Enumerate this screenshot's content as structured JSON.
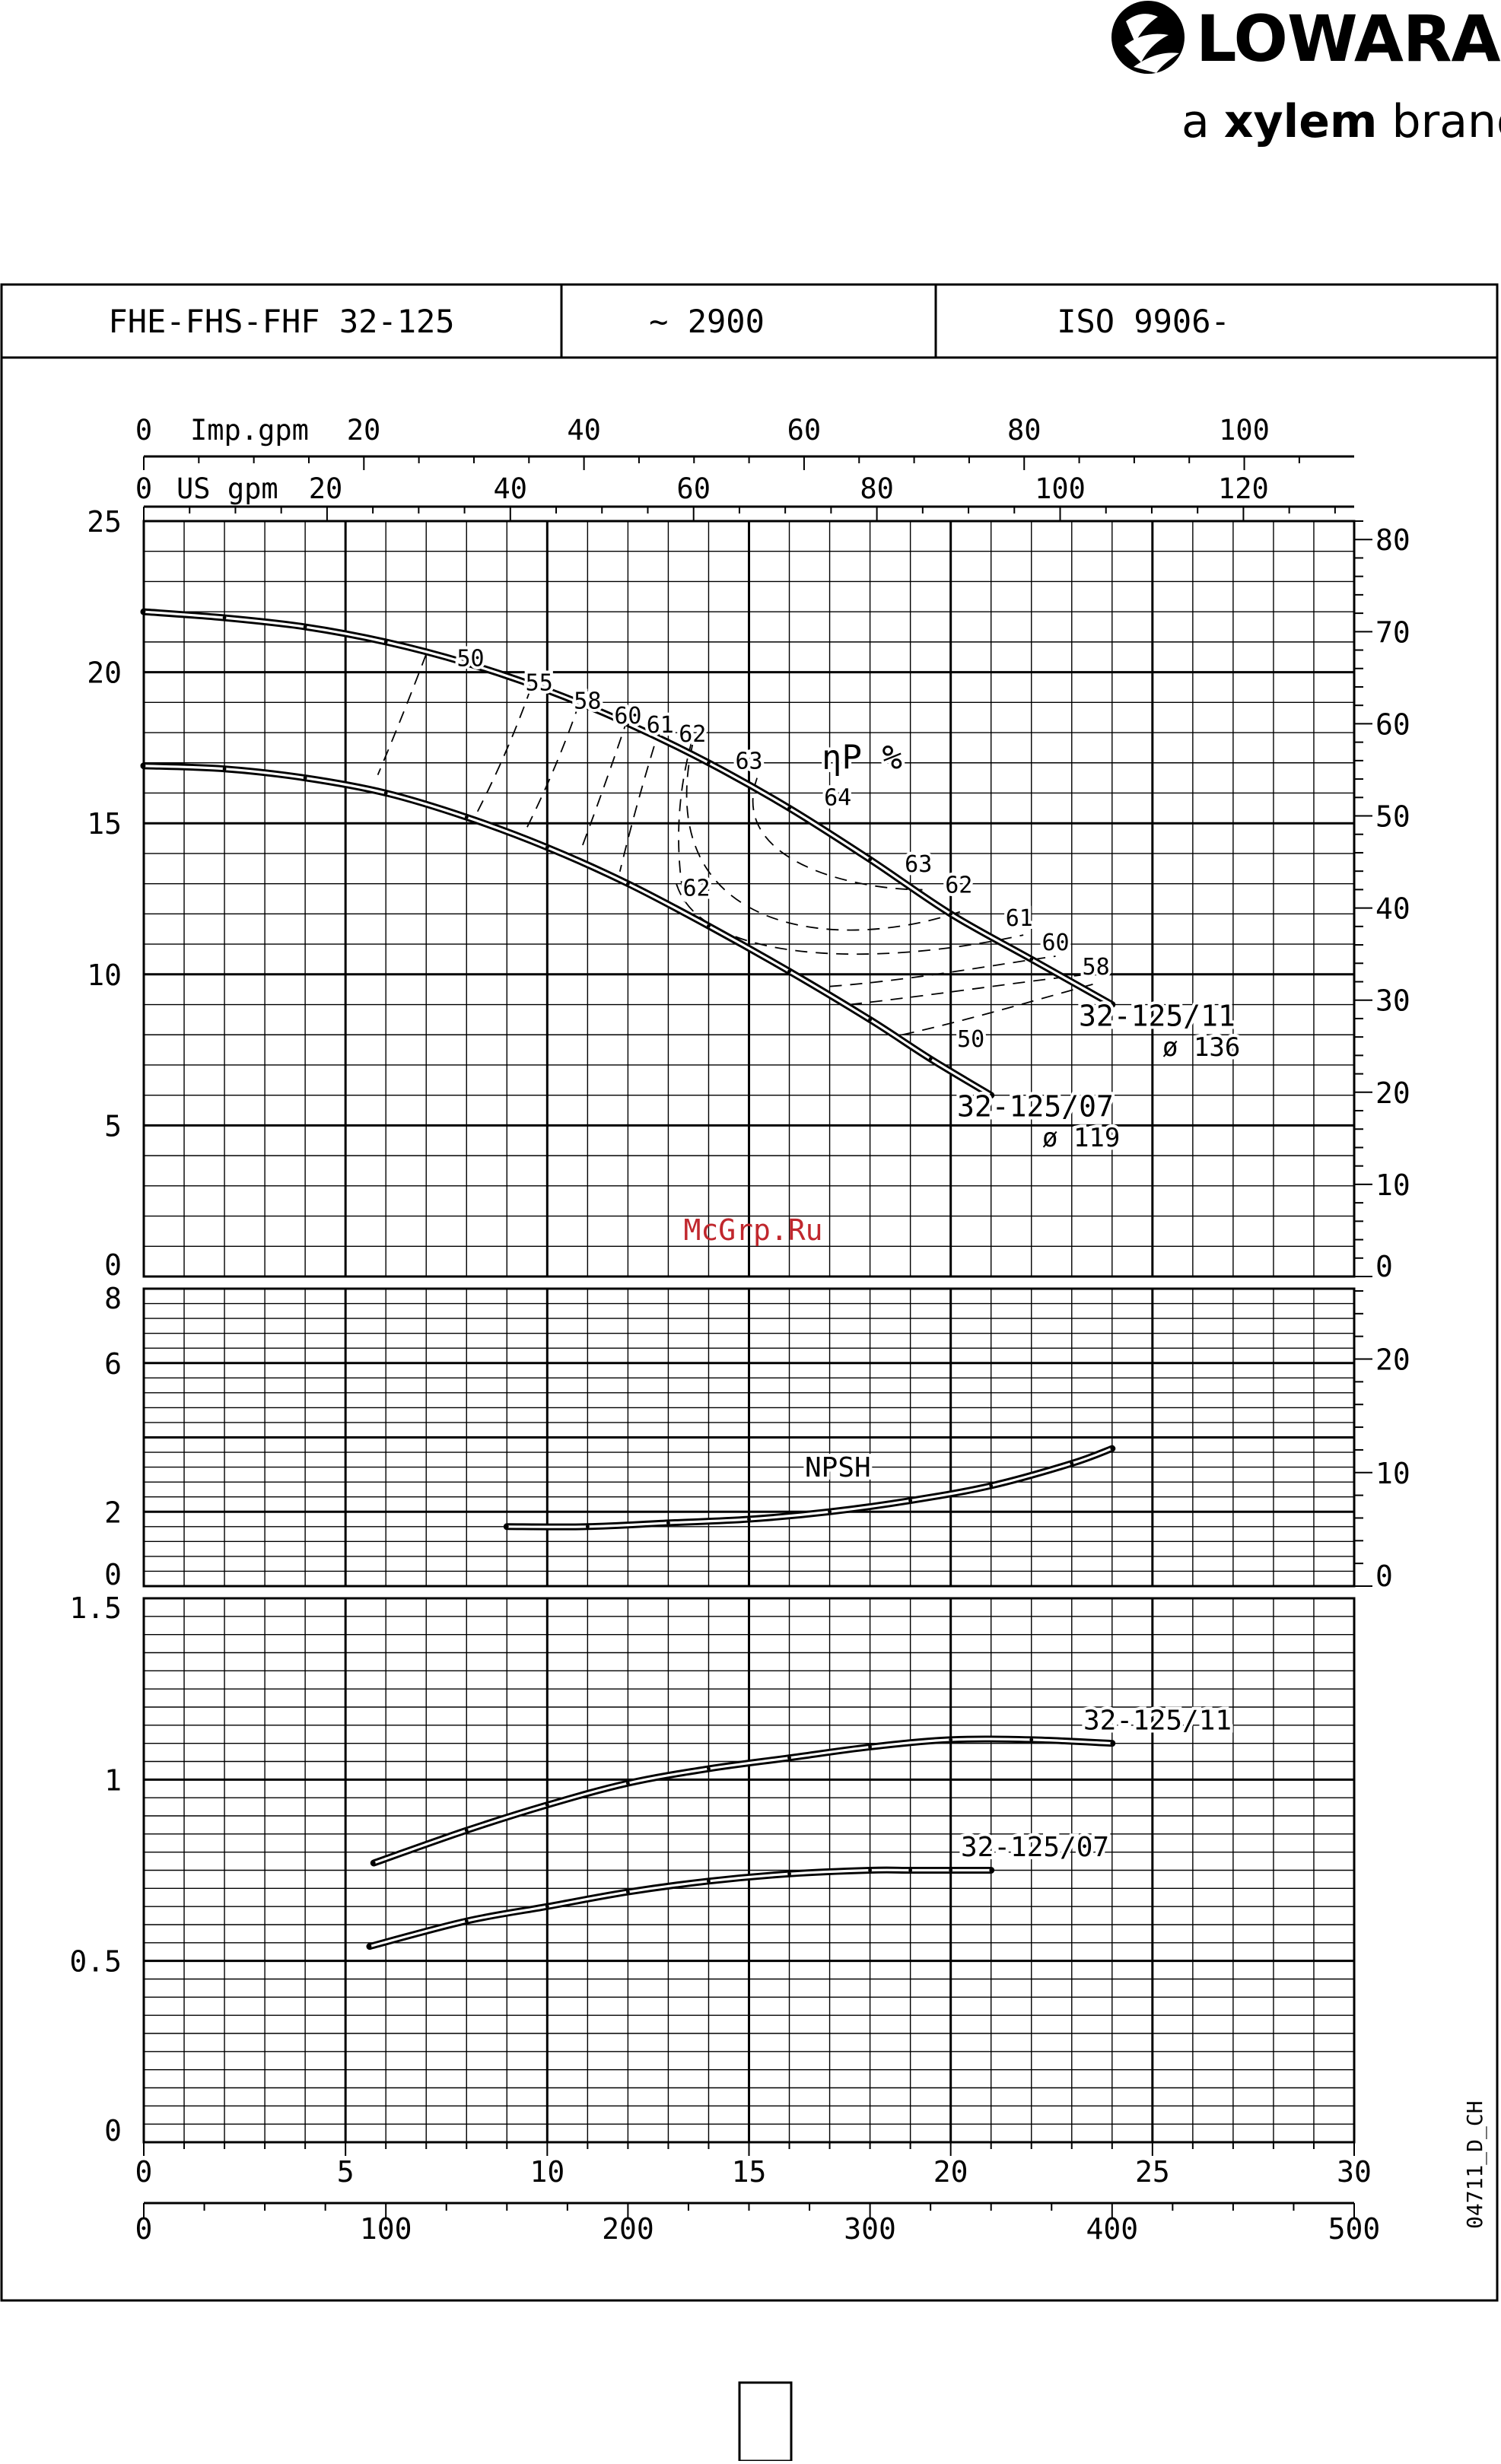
{
  "brand": {
    "name": "LOWARA",
    "tagline_prefix": "a ",
    "tagline_bold": "xylem",
    "tagline_suffix": " brand"
  },
  "header": {
    "model": "FHE-FHS-FHF 32-125",
    "speed": "~ 2900",
    "standard": "ISO 9906-"
  },
  "watermark": "McGrp.Ru",
  "drawing_code": "04711_D_CH",
  "chart_data": [
    {
      "type": "line",
      "panel": "head",
      "flow_axis_m3h": {
        "ticks": [
          0,
          5,
          10,
          15,
          20,
          25,
          30
        ],
        "range": [
          0,
          30
        ]
      },
      "flow_axis_lmin": {
        "ticks": [
          0,
          100,
          200,
          300,
          400,
          500
        ],
        "range": [
          0,
          500
        ]
      },
      "flow_axis_imp_gpm": {
        "ticks": [
          0,
          20,
          40,
          60,
          80,
          100
        ],
        "unit_label": "Imp.gpm"
      },
      "flow_axis_us_gpm": {
        "ticks": [
          0,
          20,
          40,
          60,
          80,
          100,
          120
        ],
        "unit_label": "US gpm"
      },
      "y_left": {
        "ticks": [
          0,
          5,
          10,
          15,
          20,
          25
        ],
        "range": [
          0,
          25
        ]
      },
      "y_right": {
        "ticks": [
          0,
          10,
          20,
          30,
          40,
          50,
          60,
          70,
          80
        ],
        "range": [
          0,
          82
        ]
      },
      "series": [
        {
          "name": "32-125/11",
          "sub": "ø 136",
          "x": [
            0,
            2,
            4,
            6,
            8,
            10,
            12,
            14,
            16,
            18,
            20,
            22,
            24
          ],
          "y": [
            22.0,
            21.8,
            21.5,
            21.0,
            20.3,
            19.4,
            18.3,
            17.0,
            15.5,
            13.8,
            12.0,
            10.5,
            9.0
          ]
        },
        {
          "name": "32-125/07",
          "sub": "ø 119",
          "x": [
            0,
            2,
            4,
            6,
            8,
            10,
            12,
            14,
            16,
            18,
            19.5,
            21
          ],
          "y": [
            16.9,
            16.8,
            16.5,
            16.0,
            15.2,
            14.2,
            13.0,
            11.6,
            10.1,
            8.5,
            7.2,
            6.0
          ]
        }
      ],
      "efficiency": {
        "label": "ηP %",
        "curve_labels": [
          {
            "text": "50",
            "x": 8.1,
            "y": 20.2
          },
          {
            "text": "55",
            "x": 9.8,
            "y": 19.4
          },
          {
            "text": "58",
            "x": 11.0,
            "y": 18.8
          },
          {
            "text": "60",
            "x": 12.0,
            "y": 18.3
          },
          {
            "text": "61",
            "x": 12.8,
            "y": 18.0
          },
          {
            "text": "62",
            "x": 13.6,
            "y": 17.7
          },
          {
            "text": "63",
            "x": 15.0,
            "y": 16.8
          },
          {
            "text": "64",
            "x": 17.2,
            "y": 15.6
          },
          {
            "text": "63",
            "x": 19.2,
            "y": 13.4
          },
          {
            "text": "62",
            "x": 20.2,
            "y": 12.7
          },
          {
            "text": "61",
            "x": 21.7,
            "y": 11.6
          },
          {
            "text": "60",
            "x": 22.6,
            "y": 10.8
          },
          {
            "text": "58",
            "x": 23.6,
            "y": 10.0
          },
          {
            "text": "62",
            "x": 13.7,
            "y": 12.6
          },
          {
            "text": "50",
            "x": 20.5,
            "y": 7.6
          }
        ]
      }
    },
    {
      "type": "line",
      "panel": "npsh",
      "y_left": {
        "ticks": [
          0,
          2,
          6,
          8
        ],
        "range": [
          0,
          8
        ]
      },
      "y_right": {
        "ticks": [
          0,
          10,
          20
        ],
        "range": [
          0,
          26.2
        ]
      },
      "series": [
        {
          "name": "NPSH",
          "x": [
            9,
            11,
            13,
            15,
            17,
            19,
            21,
            23,
            24
          ],
          "y": [
            1.6,
            1.6,
            1.7,
            1.8,
            2.0,
            2.3,
            2.7,
            3.3,
            3.7
          ]
        }
      ]
    },
    {
      "type": "line",
      "panel": "power",
      "y_left": {
        "ticks": [
          0,
          0.5,
          1,
          1.5
        ],
        "tick_labels": [
          "0",
          "0.5",
          "1",
          "1.5"
        ],
        "range": [
          0,
          1.5
        ]
      },
      "series": [
        {
          "name": "32-125/11",
          "x": [
            5.7,
            8,
            10,
            12,
            14,
            16,
            18,
            20,
            22,
            24
          ],
          "y": [
            0.77,
            0.86,
            0.93,
            0.99,
            1.03,
            1.06,
            1.09,
            1.11,
            1.11,
            1.1
          ]
        },
        {
          "name": "32-125/07",
          "x": [
            5.6,
            8,
            10,
            12,
            14,
            16,
            18,
            19,
            20,
            21
          ],
          "y": [
            0.54,
            0.61,
            0.65,
            0.69,
            0.72,
            0.74,
            0.75,
            0.75,
            0.75,
            0.75
          ]
        }
      ]
    }
  ]
}
